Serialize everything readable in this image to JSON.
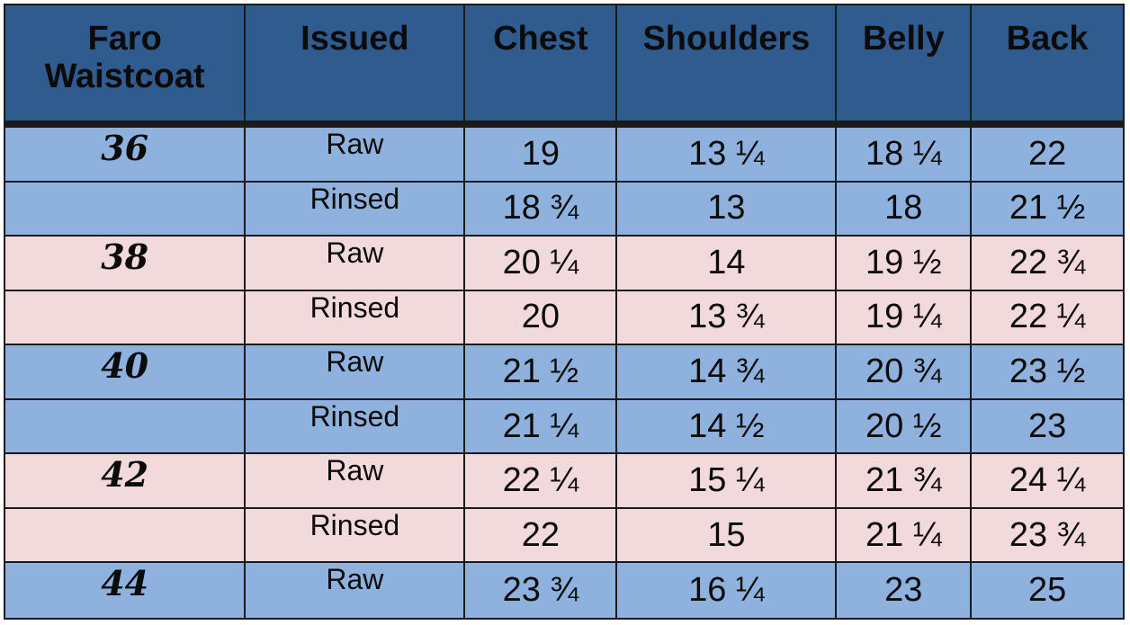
{
  "header": {
    "product_line1": "Faro",
    "product_line2": "Waistcoat",
    "issued": "Issued",
    "chest": "Chest",
    "shoulders": "Shoulders",
    "belly": "Belly",
    "back": "Back"
  },
  "rows": [
    {
      "size": "36",
      "issued": "Raw",
      "chest": "19",
      "shoulders": "13 ¼",
      "belly": "18 ¼",
      "back": "22",
      "band": "blue"
    },
    {
      "size": "",
      "issued": "Rinsed",
      "chest": "18 ¾",
      "shoulders": "13",
      "belly": "18",
      "back": "21 ½",
      "band": "blue"
    },
    {
      "size": "38",
      "issued": "Raw",
      "chest": "20 ¼",
      "shoulders": "14",
      "belly": "19 ½",
      "back": "22 ¾",
      "band": "pink"
    },
    {
      "size": "",
      "issued": "Rinsed",
      "chest": "20",
      "shoulders": "13 ¾",
      "belly": "19 ¼",
      "back": "22 ¼",
      "band": "pink"
    },
    {
      "size": "40",
      "issued": "Raw",
      "chest": "21 ½",
      "shoulders": "14 ¾",
      "belly": "20 ¾",
      "back": "23 ½",
      "band": "blue"
    },
    {
      "size": "",
      "issued": "Rinsed",
      "chest": "21 ¼",
      "shoulders": "14 ½",
      "belly": "20 ½",
      "back": "23",
      "band": "blue"
    },
    {
      "size": "42",
      "issued": "Raw",
      "chest": "22 ¼",
      "shoulders": "15 ¼",
      "belly": "21 ¾",
      "back": "24 ¼",
      "band": "pink"
    },
    {
      "size": "",
      "issued": "Rinsed",
      "chest": "22",
      "shoulders": "15",
      "belly": "21 ¼",
      "back": "23 ¾",
      "band": "pink"
    },
    {
      "size": "44",
      "issued": "Raw",
      "chest": "23 ¾",
      "shoulders": "16 ¼",
      "belly": "23",
      "back": "25",
      "band": "blue"
    }
  ],
  "colors": {
    "header_bg": "#2f5b8e",
    "band_blue": "#8fb1dd",
    "band_pink": "#f2d9dc",
    "grid": "#1a1a1a"
  }
}
